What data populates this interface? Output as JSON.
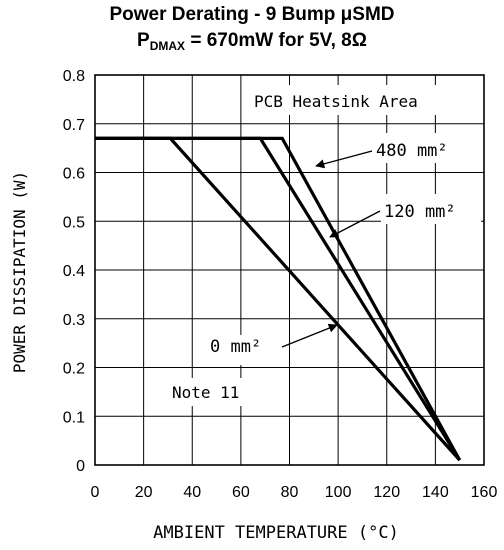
{
  "title": {
    "line1": "Power Derating - 9 Bump μSMD",
    "line2_main": "P",
    "line2_sub": "DMAX",
    "line2_rest": " = 670mW for 5V, 8Ω"
  },
  "chart_data": {
    "type": "line",
    "xlabel": "AMBIENT TEMPERATURE (°C)",
    "ylabel": "POWER DISSIPATION (W)",
    "xlim": [
      0,
      160
    ],
    "ylim": [
      0,
      0.8
    ],
    "xticks": [
      "0",
      "20",
      "40",
      "60",
      "80",
      "100",
      "120",
      "140",
      "160"
    ],
    "yticks": [
      "0",
      "0.1",
      "0.2",
      "0.3",
      "0.4",
      "0.5",
      "0.6",
      "0.7",
      "0.8"
    ],
    "grid": true,
    "legend_title": "PCB Heatsink Area",
    "note": "Note 11",
    "series": [
      {
        "name": "480 mm²",
        "points": [
          [
            0,
            0.67
          ],
          [
            77,
            0.67
          ],
          [
            150,
            0.01
          ]
        ]
      },
      {
        "name": "120 mm²",
        "points": [
          [
            0,
            0.67
          ],
          [
            68,
            0.67
          ],
          [
            150,
            0.01
          ]
        ]
      },
      {
        "name": "0 mm²",
        "points": [
          [
            0,
            0.67
          ],
          [
            31,
            0.67
          ],
          [
            150,
            0.01
          ]
        ]
      }
    ]
  }
}
